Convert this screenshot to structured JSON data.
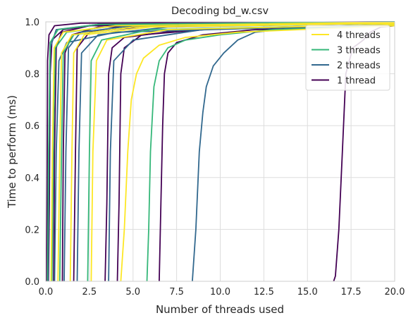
{
  "chart_data": {
    "type": "line",
    "title": "Decoding bd_w.csv",
    "xlabel": "Number of threads used",
    "ylabel": "Time to perform (ms)",
    "xlim": [
      0,
      20
    ],
    "ylim": [
      0,
      1
    ],
    "xticks": [
      0,
      2.5,
      5,
      7.5,
      10,
      12.5,
      15,
      17.5,
      20
    ],
    "xtick_labels": [
      "0.0",
      "2.5",
      "5.0",
      "7.5",
      "10.0",
      "12.5",
      "15.0",
      "17.5",
      "20.0"
    ],
    "yticks": [
      0,
      0.2,
      0.4,
      0.6,
      0.8,
      1.0
    ],
    "ytick_labels": [
      "0.0",
      "0.2",
      "0.4",
      "0.6",
      "0.8",
      "1.0"
    ],
    "grid": true,
    "legend_position": "upper right",
    "legend": [
      {
        "label": "4 threads",
        "color": "#fde725"
      },
      {
        "label": "3 threads",
        "color": "#35b779"
      },
      {
        "label": "2 threads",
        "color": "#31688e"
      },
      {
        "label": "1 thread",
        "color": "#440154"
      }
    ],
    "series": [
      {
        "group": "1 thread",
        "color": "#440154",
        "points": [
          [
            0.05,
            0
          ],
          [
            0.07,
            0.3
          ],
          [
            0.1,
            0.85
          ],
          [
            0.18,
            0.95
          ],
          [
            0.5,
            0.985
          ],
          [
            2,
            0.995
          ],
          [
            20,
            1.0
          ]
        ]
      },
      {
        "group": "1 thread",
        "color": "#440154",
        "points": [
          [
            0.15,
            0
          ],
          [
            0.2,
            0.3
          ],
          [
            0.25,
            0.8
          ],
          [
            0.35,
            0.93
          ],
          [
            1.0,
            0.97
          ],
          [
            3,
            0.99
          ],
          [
            20,
            1.0
          ]
        ]
      },
      {
        "group": "1 thread",
        "color": "#440154",
        "points": [
          [
            0.45,
            0
          ],
          [
            0.5,
            0.5
          ],
          [
            0.6,
            0.9
          ],
          [
            0.9,
            0.96
          ],
          [
            2.5,
            0.985
          ],
          [
            20,
            1.0
          ]
        ]
      },
      {
        "group": "1 thread",
        "color": "#440154",
        "points": [
          [
            0.95,
            0
          ],
          [
            1.0,
            0.5
          ],
          [
            1.1,
            0.88
          ],
          [
            1.5,
            0.95
          ],
          [
            3,
            0.98
          ],
          [
            20,
            0.995
          ]
        ]
      },
      {
        "group": "1 thread",
        "color": "#440154",
        "points": [
          [
            1.6,
            0
          ],
          [
            1.7,
            0.5
          ],
          [
            1.8,
            0.9
          ],
          [
            2.5,
            0.96
          ],
          [
            6,
            0.985
          ],
          [
            20,
            0.998
          ]
        ]
      },
      {
        "group": "1 thread",
        "color": "#440154",
        "points": [
          [
            3.4,
            0
          ],
          [
            3.5,
            0.3
          ],
          [
            3.6,
            0.8
          ],
          [
            3.8,
            0.9
          ],
          [
            4.5,
            0.94
          ],
          [
            8,
            0.97
          ],
          [
            20,
            0.99
          ]
        ]
      },
      {
        "group": "1 thread",
        "color": "#440154",
        "points": [
          [
            4.1,
            0
          ],
          [
            4.2,
            0.3
          ],
          [
            4.3,
            0.8
          ],
          [
            4.5,
            0.9
          ],
          [
            5.5,
            0.95
          ],
          [
            10,
            0.975
          ],
          [
            20,
            0.99
          ]
        ]
      },
      {
        "group": "1 thread",
        "color": "#440154",
        "points": [
          [
            6.5,
            0
          ],
          [
            6.6,
            0.3
          ],
          [
            6.7,
            0.6
          ],
          [
            6.8,
            0.8
          ],
          [
            7.0,
            0.88
          ],
          [
            7.5,
            0.92
          ],
          [
            9,
            0.95
          ],
          [
            12,
            0.97
          ],
          [
            20,
            0.985
          ]
        ]
      },
      {
        "group": "1 thread",
        "color": "#440154",
        "points": [
          [
            16.5,
            0
          ],
          [
            16.6,
            0.02
          ],
          [
            16.8,
            0.2
          ],
          [
            17.0,
            0.5
          ],
          [
            17.2,
            0.8
          ],
          [
            17.6,
            0.9
          ],
          [
            18.2,
            0.93
          ],
          [
            18.6,
            0.96
          ],
          [
            19.2,
            0.98
          ],
          [
            20,
            0.985
          ]
        ]
      },
      {
        "group": "2 threads",
        "color": "#31688e",
        "points": [
          [
            0.12,
            0
          ],
          [
            0.17,
            0.5
          ],
          [
            0.25,
            0.9
          ],
          [
            0.6,
            0.97
          ],
          [
            3,
            0.99
          ],
          [
            20,
            1.0
          ]
        ]
      },
      {
        "group": "2 threads",
        "color": "#31688e",
        "points": [
          [
            0.5,
            0
          ],
          [
            0.6,
            0.5
          ],
          [
            0.75,
            0.85
          ],
          [
            1.2,
            0.92
          ],
          [
            4,
            0.96
          ],
          [
            20,
            0.99
          ]
        ]
      },
      {
        "group": "2 threads",
        "color": "#31688e",
        "points": [
          [
            1.05,
            0
          ],
          [
            1.15,
            0.5
          ],
          [
            1.3,
            0.9
          ],
          [
            2,
            0.96
          ],
          [
            5,
            0.985
          ],
          [
            20,
            0.998
          ]
        ]
      },
      {
        "group": "2 threads",
        "color": "#31688e",
        "points": [
          [
            1.8,
            0
          ],
          [
            1.9,
            0.5
          ],
          [
            2.05,
            0.88
          ],
          [
            3,
            0.95
          ],
          [
            7,
            0.98
          ],
          [
            20,
            0.995
          ]
        ]
      },
      {
        "group": "2 threads",
        "color": "#31688e",
        "points": [
          [
            3.6,
            0
          ],
          [
            3.7,
            0.5
          ],
          [
            3.9,
            0.85
          ],
          [
            5,
            0.93
          ],
          [
            9,
            0.97
          ],
          [
            20,
            0.99
          ]
        ]
      },
      {
        "group": "2 threads",
        "color": "#31688e",
        "points": [
          [
            8.4,
            0
          ],
          [
            8.6,
            0.2
          ],
          [
            8.8,
            0.5
          ],
          [
            9.0,
            0.65
          ],
          [
            9.2,
            0.75
          ],
          [
            9.6,
            0.83
          ],
          [
            10.2,
            0.88
          ],
          [
            11,
            0.93
          ],
          [
            12,
            0.96
          ],
          [
            14,
            0.975
          ],
          [
            20,
            0.985
          ]
        ]
      },
      {
        "group": "3 threads",
        "color": "#35b779",
        "points": [
          [
            0.1,
            0
          ],
          [
            0.16,
            0.5
          ],
          [
            0.25,
            0.92
          ],
          [
            0.7,
            0.97
          ],
          [
            3,
            0.99
          ],
          [
            20,
            1.0
          ]
        ]
      },
      {
        "group": "3 threads",
        "color": "#35b779",
        "points": [
          [
            0.35,
            0
          ],
          [
            0.45,
            0.6
          ],
          [
            0.55,
            0.9
          ],
          [
            1.2,
            0.96
          ],
          [
            4,
            0.985
          ],
          [
            20,
            0.998
          ]
        ]
      },
      {
        "group": "3 threads",
        "color": "#35b779",
        "points": [
          [
            0.8,
            0
          ],
          [
            0.9,
            0.5
          ],
          [
            1.0,
            0.88
          ],
          [
            1.6,
            0.95
          ],
          [
            5,
            0.98
          ],
          [
            20,
            0.995
          ]
        ]
      },
      {
        "group": "3 threads",
        "color": "#35b779",
        "points": [
          [
            2.4,
            0
          ],
          [
            2.5,
            0.5
          ],
          [
            2.6,
            0.85
          ],
          [
            3.2,
            0.93
          ],
          [
            6,
            0.97
          ],
          [
            20,
            0.99
          ]
        ]
      },
      {
        "group": "3 threads",
        "color": "#35b779",
        "points": [
          [
            5.8,
            0
          ],
          [
            5.9,
            0.2
          ],
          [
            6.0,
            0.5
          ],
          [
            6.2,
            0.75
          ],
          [
            6.5,
            0.85
          ],
          [
            7,
            0.9
          ],
          [
            8,
            0.93
          ],
          [
            10,
            0.95
          ],
          [
            13,
            0.97
          ],
          [
            20,
            0.985
          ]
        ]
      },
      {
        "group": "4 threads",
        "color": "#fde725",
        "points": [
          [
            0.3,
            0
          ],
          [
            0.38,
            0.5
          ],
          [
            0.48,
            0.9
          ],
          [
            1,
            0.96
          ],
          [
            4,
            0.985
          ],
          [
            20,
            0.998
          ]
        ]
      },
      {
        "group": "4 threads",
        "color": "#fde725",
        "points": [
          [
            0.7,
            0
          ],
          [
            0.8,
            0.5
          ],
          [
            0.9,
            0.88
          ],
          [
            1.5,
            0.95
          ],
          [
            5,
            0.98
          ],
          [
            20,
            0.995
          ]
        ]
      },
      {
        "group": "4 threads",
        "color": "#fde725",
        "points": [
          [
            1.4,
            0
          ],
          [
            1.5,
            0.5
          ],
          [
            1.6,
            0.88
          ],
          [
            2.2,
            0.95
          ],
          [
            6,
            0.98
          ],
          [
            20,
            0.995
          ]
        ]
      },
      {
        "group": "4 threads",
        "color": "#fde725",
        "points": [
          [
            2.6,
            0
          ],
          [
            2.7,
            0.5
          ],
          [
            2.9,
            0.85
          ],
          [
            3.5,
            0.93
          ],
          [
            7,
            0.97
          ],
          [
            20,
            0.99
          ]
        ]
      },
      {
        "group": "4 threads",
        "color": "#fde725",
        "points": [
          [
            4.3,
            0
          ],
          [
            4.5,
            0.2
          ],
          [
            4.7,
            0.5
          ],
          [
            4.9,
            0.7
          ],
          [
            5.2,
            0.8
          ],
          [
            5.6,
            0.86
          ],
          [
            6.5,
            0.91
          ],
          [
            8,
            0.94
          ],
          [
            11,
            0.96
          ],
          [
            20,
            0.985
          ]
        ]
      }
    ]
  }
}
